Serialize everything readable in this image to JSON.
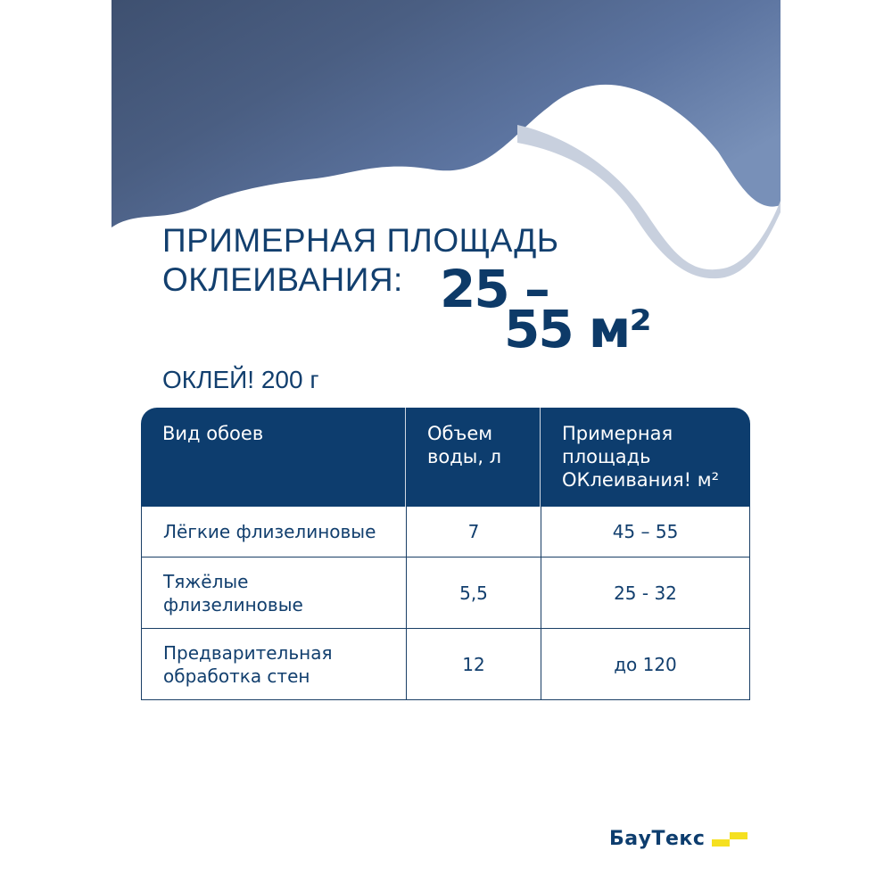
{
  "headline": {
    "line1": "ПРИМЕРНАЯ ПЛОЩАДЬ",
    "line2": "ОКЛЕИВАНИЯ:",
    "range_top": "25 –",
    "range_bottom": "55 м²"
  },
  "product": "ОКЛЕЙ!  200 г",
  "table": {
    "headers": [
      "Вид обоев",
      "Объем воды, л",
      "Примерная площадь ОКлеивания! м²"
    ],
    "rows": [
      [
        "Лёгкие  флизелиновые",
        "7",
        "45 – 55"
      ],
      [
        "Тяжёлые флизелиновые",
        "5,5",
        "25  - 32"
      ],
      [
        "Предварительная обработка стен",
        "12",
        "до 120"
      ]
    ]
  },
  "brand": {
    "name": "БауТекс",
    "accent": "#f5e020"
  },
  "colors": {
    "primary": "#0d3d6e"
  }
}
